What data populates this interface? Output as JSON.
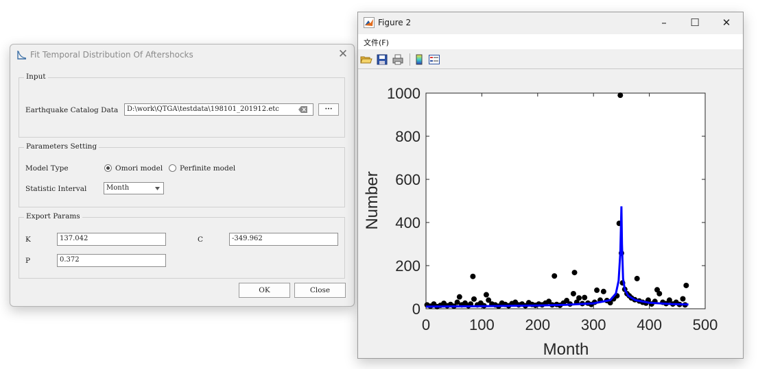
{
  "dialog": {
    "title": "Fit Temporal Distribution Of Aftershocks",
    "input": {
      "group_label": "Input",
      "catalog_label": "Earthquake Catalog Data",
      "catalog_value": "D:\\work\\QTGA\\testdata\\198101_201912.etc",
      "browse_label": "···"
    },
    "params": {
      "group_label": "Parameters Setting",
      "model_type_label": "Model Type",
      "model_options": [
        "Omori model",
        "Perfinite model"
      ],
      "selected_model": "Omori model",
      "interval_label": "Statistic Interval",
      "interval_value": "Month"
    },
    "export": {
      "group_label": "Export Params",
      "k_label": "K",
      "k_value": "137.042",
      "c_label": "C",
      "c_value": "-349.962",
      "p_label": "P",
      "p_value": "0.372"
    },
    "ok_label": "OK",
    "close_label": "Close"
  },
  "figure_window": {
    "title": "Figure 2",
    "menu": [
      "文件(F)"
    ],
    "window_buttons": [
      "minimize-icon",
      "maximize-icon",
      "close-icon"
    ],
    "toolbar_icons": [
      "open-icon",
      "save-icon",
      "print-icon",
      "colorbar-icon",
      "legend-icon"
    ]
  },
  "chart_data": {
    "type": "scatter",
    "xlabel": "Month",
    "ylabel": "Number",
    "xlim": [
      0,
      500
    ],
    "ylim": [
      0,
      1000
    ],
    "xticks": [
      "0",
      "100",
      "200",
      "300",
      "400",
      "500"
    ],
    "yticks": [
      "0",
      "200",
      "400",
      "600",
      "800",
      "1000"
    ],
    "grid": false,
    "marker_color": "#000000",
    "fit_color": "#0000ff",
    "series": [
      {
        "points": [
          [
            2,
            18
          ],
          [
            8,
            12
          ],
          [
            14,
            22
          ],
          [
            20,
            10
          ],
          [
            26,
            16
          ],
          [
            32,
            25
          ],
          [
            38,
            14
          ],
          [
            44,
            20
          ],
          [
            50,
            12
          ],
          [
            56,
            30
          ],
          [
            60,
            55
          ],
          [
            64,
            18
          ],
          [
            70,
            26
          ],
          [
            76,
            14
          ],
          [
            80,
            22
          ],
          [
            84,
            150
          ],
          [
            86,
            45
          ],
          [
            92,
            18
          ],
          [
            98,
            26
          ],
          [
            104,
            14
          ],
          [
            108,
            65
          ],
          [
            112,
            40
          ],
          [
            118,
            22
          ],
          [
            124,
            18
          ],
          [
            130,
            12
          ],
          [
            136,
            26
          ],
          [
            142,
            20
          ],
          [
            148,
            14
          ],
          [
            154,
            24
          ],
          [
            160,
            30
          ],
          [
            166,
            18
          ],
          [
            172,
            22
          ],
          [
            178,
            14
          ],
          [
            184,
            28
          ],
          [
            190,
            20
          ],
          [
            196,
            16
          ],
          [
            202,
            22
          ],
          [
            208,
            18
          ],
          [
            214,
            26
          ],
          [
            220,
            34
          ],
          [
            226,
            18
          ],
          [
            230,
            152
          ],
          [
            234,
            20
          ],
          [
            240,
            16
          ],
          [
            246,
            26
          ],
          [
            252,
            38
          ],
          [
            258,
            22
          ],
          [
            264,
            70
          ],
          [
            266,
            168
          ],
          [
            270,
            30
          ],
          [
            274,
            50
          ],
          [
            280,
            24
          ],
          [
            284,
            52
          ],
          [
            290,
            26
          ],
          [
            296,
            20
          ],
          [
            302,
            30
          ],
          [
            306,
            86
          ],
          [
            312,
            40
          ],
          [
            318,
            80
          ],
          [
            324,
            38
          ],
          [
            330,
            28
          ],
          [
            336,
            46
          ],
          [
            342,
            60
          ],
          [
            346,
            396
          ],
          [
            348,
            990
          ],
          [
            350,
            258
          ],
          [
            352,
            120
          ],
          [
            356,
            90
          ],
          [
            360,
            70
          ],
          [
            364,
            60
          ],
          [
            368,
            50
          ],
          [
            374,
            42
          ],
          [
            378,
            140
          ],
          [
            382,
            36
          ],
          [
            388,
            30
          ],
          [
            394,
            26
          ],
          [
            398,
            40
          ],
          [
            404,
            22
          ],
          [
            410,
            34
          ],
          [
            414,
            88
          ],
          [
            418,
            70
          ],
          [
            424,
            30
          ],
          [
            430,
            24
          ],
          [
            436,
            40
          ],
          [
            442,
            22
          ],
          [
            448,
            30
          ],
          [
            454,
            20
          ],
          [
            460,
            46
          ],
          [
            464,
            18
          ],
          [
            466,
            108
          ]
        ]
      }
    ],
    "fit_line": [
      [
        0,
        10
      ],
      [
        100,
        12
      ],
      [
        200,
        15
      ],
      [
        250,
        18
      ],
      [
        300,
        25
      ],
      [
        330,
        40
      ],
      [
        340,
        70
      ],
      [
        345,
        130
      ],
      [
        348,
        260
      ],
      [
        350,
        475
      ],
      [
        351,
        300
      ],
      [
        353,
        140
      ],
      [
        356,
        90
      ],
      [
        362,
        60
      ],
      [
        375,
        40
      ],
      [
        400,
        28
      ],
      [
        440,
        22
      ],
      [
        470,
        20
      ]
    ]
  }
}
